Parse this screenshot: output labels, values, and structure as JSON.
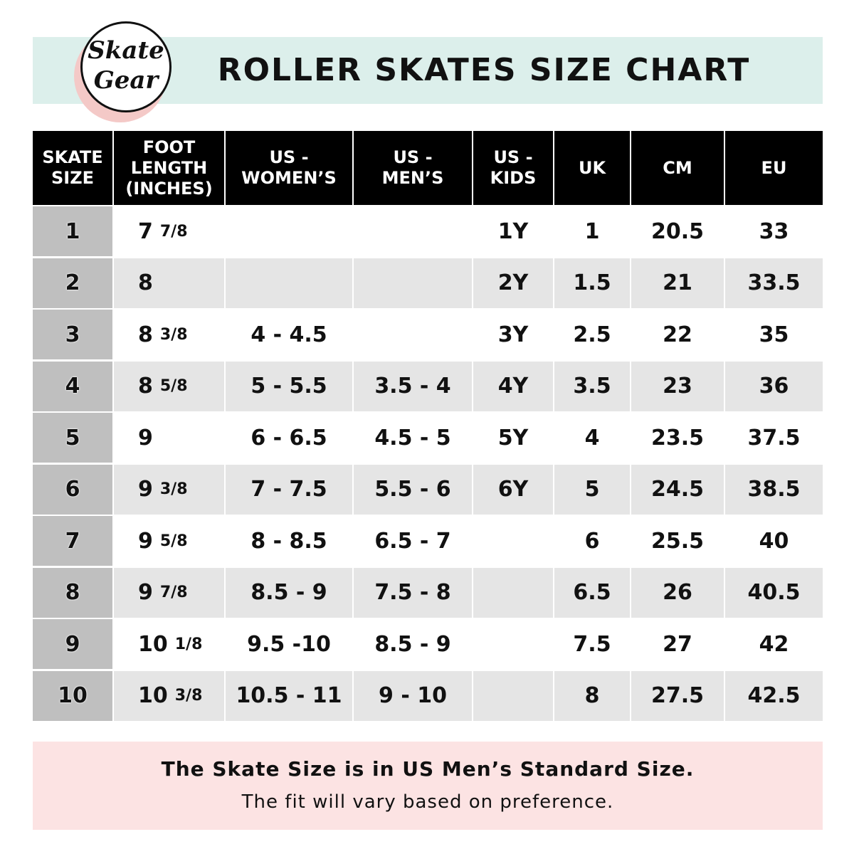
{
  "header": {
    "title": "ROLLER SKATES SIZE CHART",
    "logo": {
      "line1": "Skate",
      "line2": "Gear"
    },
    "banner_color": "#dcefeb"
  },
  "table": {
    "columns": [
      "SKATE\nSIZE",
      "FOOT\nLENGTH\n(INCHES)",
      "US -\nWOMEN’S",
      "US -\nMEN’S",
      "US -\nKIDS",
      "UK",
      "CM",
      "EU"
    ],
    "rows": [
      {
        "skate_size": "1",
        "foot_whole": "7",
        "foot_frac": "7/8",
        "us_women": "",
        "us_men": "",
        "us_kids": "1Y",
        "uk": "1",
        "cm": "20.5",
        "eu": "33"
      },
      {
        "skate_size": "2",
        "foot_whole": "8",
        "foot_frac": "",
        "us_women": "",
        "us_men": "",
        "us_kids": "2Y",
        "uk": "1.5",
        "cm": "21",
        "eu": "33.5"
      },
      {
        "skate_size": "3",
        "foot_whole": "8",
        "foot_frac": "3/8",
        "us_women": "4 - 4.5",
        "us_men": "",
        "us_kids": "3Y",
        "uk": "2.5",
        "cm": "22",
        "eu": "35"
      },
      {
        "skate_size": "4",
        "foot_whole": "8",
        "foot_frac": "5/8",
        "us_women": "5 - 5.5",
        "us_men": "3.5 - 4",
        "us_kids": "4Y",
        "uk": "3.5",
        "cm": "23",
        "eu": "36"
      },
      {
        "skate_size": "5",
        "foot_whole": "9",
        "foot_frac": "",
        "us_women": "6 - 6.5",
        "us_men": "4.5 - 5",
        "us_kids": "5Y",
        "uk": "4",
        "cm": "23.5",
        "eu": "37.5"
      },
      {
        "skate_size": "6",
        "foot_whole": "9",
        "foot_frac": "3/8",
        "us_women": "7 - 7.5",
        "us_men": "5.5 - 6",
        "us_kids": "6Y",
        "uk": "5",
        "cm": "24.5",
        "eu": "38.5"
      },
      {
        "skate_size": "7",
        "foot_whole": "9",
        "foot_frac": "5/8",
        "us_women": "8 - 8.5",
        "us_men": "6.5 - 7",
        "us_kids": "",
        "uk": "6",
        "cm": "25.5",
        "eu": "40"
      },
      {
        "skate_size": "8",
        "foot_whole": "9",
        "foot_frac": "7/8",
        "us_women": "8.5 - 9",
        "us_men": "7.5 - 8",
        "us_kids": "",
        "uk": "6.5",
        "cm": "26",
        "eu": "40.5"
      },
      {
        "skate_size": "9",
        "foot_whole": "10",
        "foot_frac": "1/8",
        "us_women": "9.5 -10",
        "us_men": "8.5 - 9",
        "us_kids": "",
        "uk": "7.5",
        "cm": "27",
        "eu": "42"
      },
      {
        "skate_size": "10",
        "foot_whole": "10",
        "foot_frac": "3/8",
        "us_women": "10.5 - 11",
        "us_men": "9 - 10",
        "us_kids": "",
        "uk": "8",
        "cm": "27.5",
        "eu": "42.5"
      }
    ]
  },
  "footer": {
    "line1": "The Skate Size is in US Men’s Standard Size.",
    "line2": "The fit will vary based on preference.",
    "background_color": "#fce3e3"
  }
}
